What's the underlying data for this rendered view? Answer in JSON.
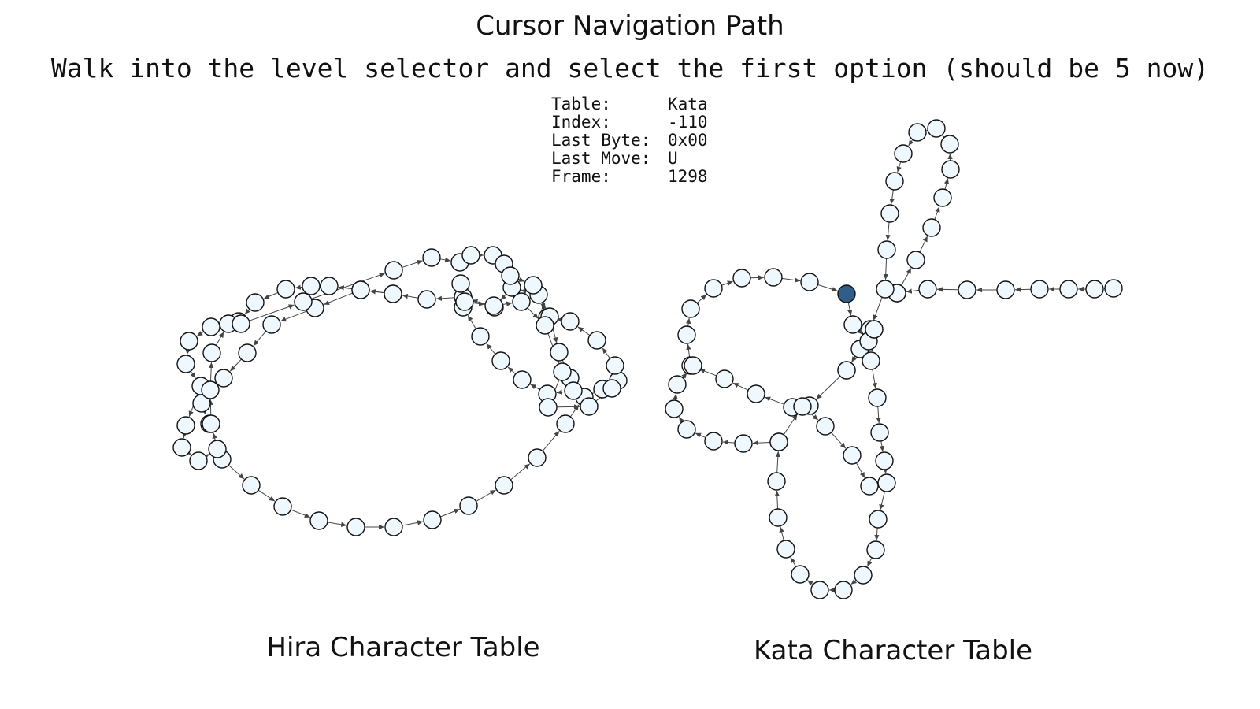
{
  "title": "Cursor Navigation Path",
  "instruction": "Walk into the level selector and select the first option (should be 5 now)",
  "info": {
    "table_label": "Table:",
    "table_value": "Kata",
    "index_label": "Index:",
    "index_value": "-110",
    "last_byte_label": "Last Byte:",
    "last_byte_value": "0x00",
    "last_move_label": "Last Move:",
    "last_move_value": "U",
    "frame_label": "Frame:",
    "frame_value": "1298"
  },
  "panels": {
    "hira_label": "Hira Character Table",
    "kata_label": "Kata Character Table"
  },
  "colors": {
    "node_fill": "#f0f8ff",
    "current_node_fill": "#2f5f88",
    "node_stroke": "#111111",
    "edge": "#444444"
  }
}
